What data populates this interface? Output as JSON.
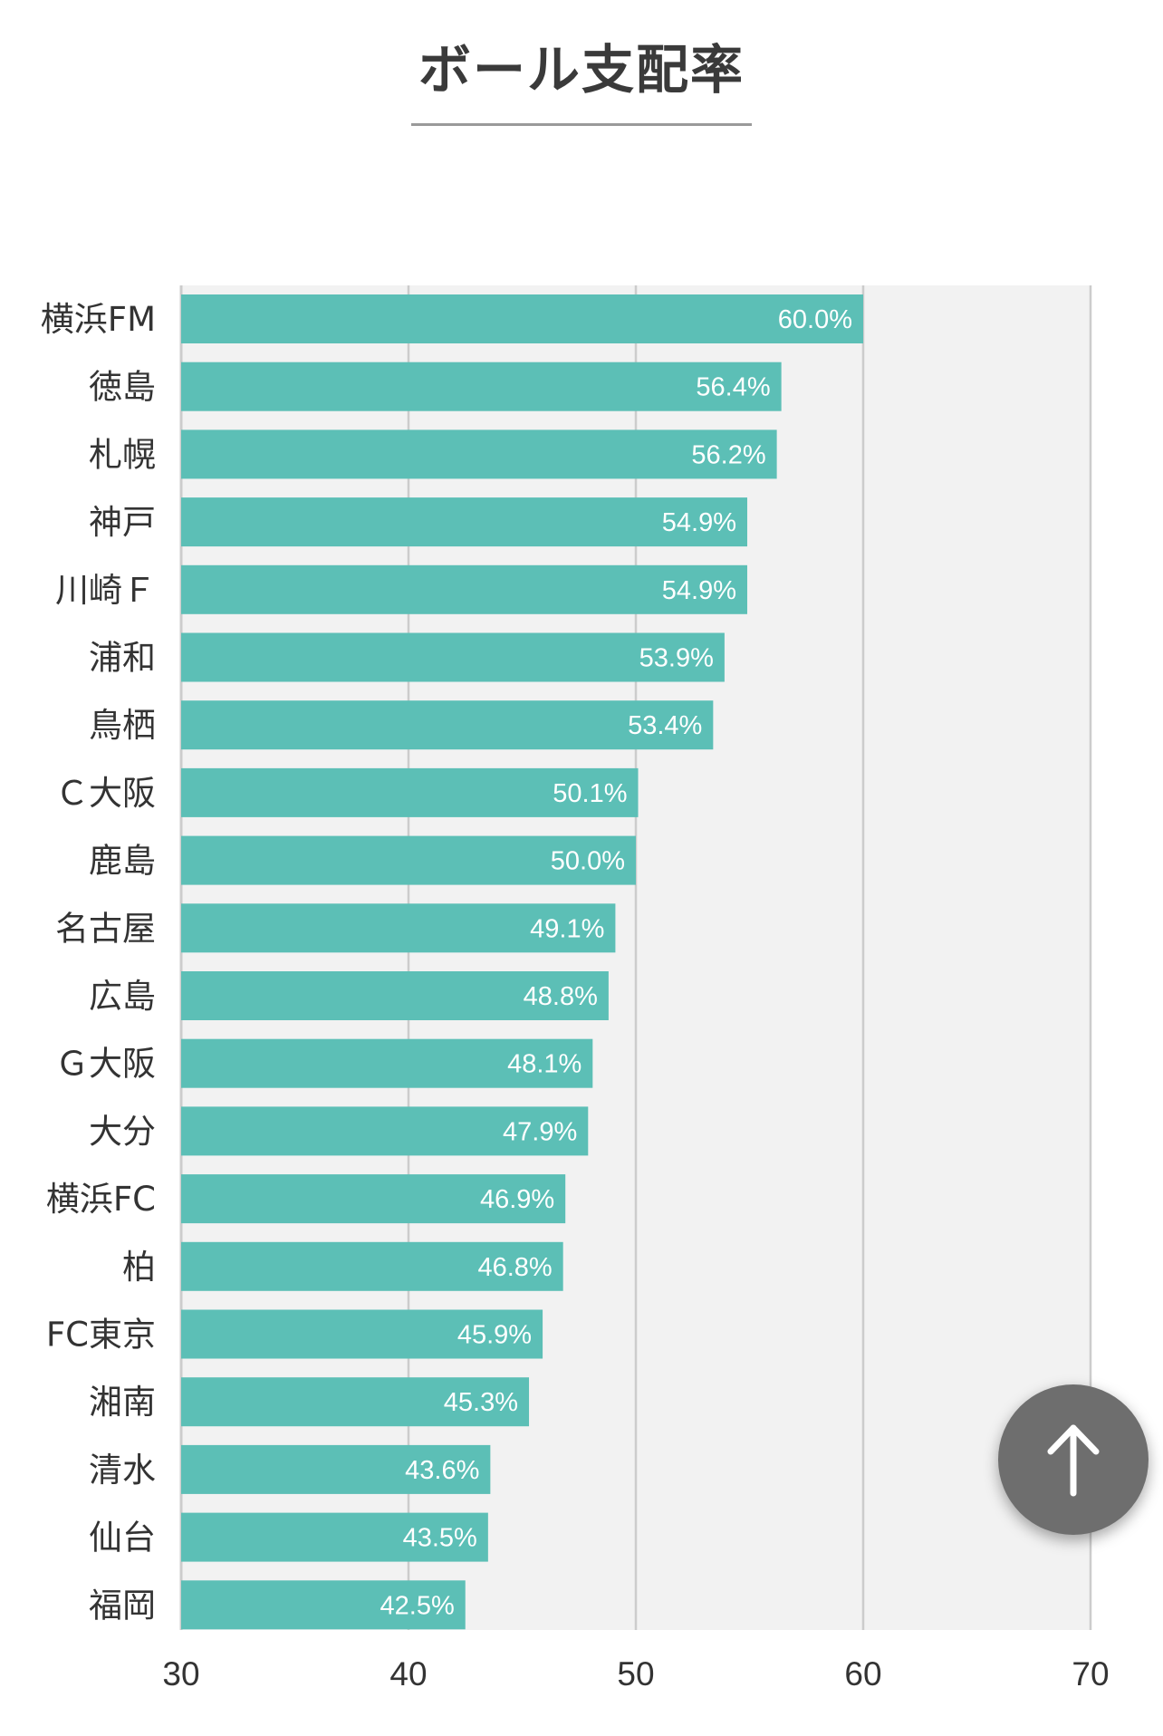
{
  "chart_data": {
    "type": "bar",
    "orientation": "horizontal",
    "title": "ボール支配率",
    "categories": [
      "横浜FM",
      "徳島",
      "札幌",
      "神戸",
      "川崎Ｆ",
      "浦和",
      "鳥栖",
      "Ｃ大阪",
      "鹿島",
      "名古屋",
      "広島",
      "Ｇ大阪",
      "大分",
      "横浜FC",
      "柏",
      "FC東京",
      "湘南",
      "清水",
      "仙台",
      "福岡"
    ],
    "values": [
      60.0,
      56.4,
      56.2,
      54.9,
      54.9,
      53.9,
      53.4,
      50.1,
      50.0,
      49.1,
      48.8,
      48.1,
      47.9,
      46.9,
      46.8,
      45.9,
      45.3,
      43.6,
      43.5,
      42.5
    ],
    "value_labels": [
      "60.0%",
      "56.4%",
      "56.2%",
      "54.9%",
      "54.9%",
      "53.9%",
      "53.4%",
      "50.1%",
      "50.0%",
      "49.1%",
      "48.8%",
      "48.1%",
      "47.9%",
      "46.9%",
      "46.8%",
      "45.9%",
      "45.3%",
      "43.6%",
      "43.5%",
      "42.5%"
    ],
    "xlim": [
      30,
      70
    ],
    "xticks": [
      30,
      40,
      50,
      60,
      70
    ],
    "xtick_labels": [
      "30",
      "40",
      "50",
      "60",
      "70"
    ],
    "xlabel": "",
    "ylabel": "",
    "grid": true,
    "legend": "none",
    "bar_color": "#5cbfb6",
    "plot_background": "#f2f2f2",
    "grid_color": "#cccccc"
  },
  "scroll_top": {
    "icon": "arrow-up-icon",
    "color": "#6e6e6e"
  }
}
